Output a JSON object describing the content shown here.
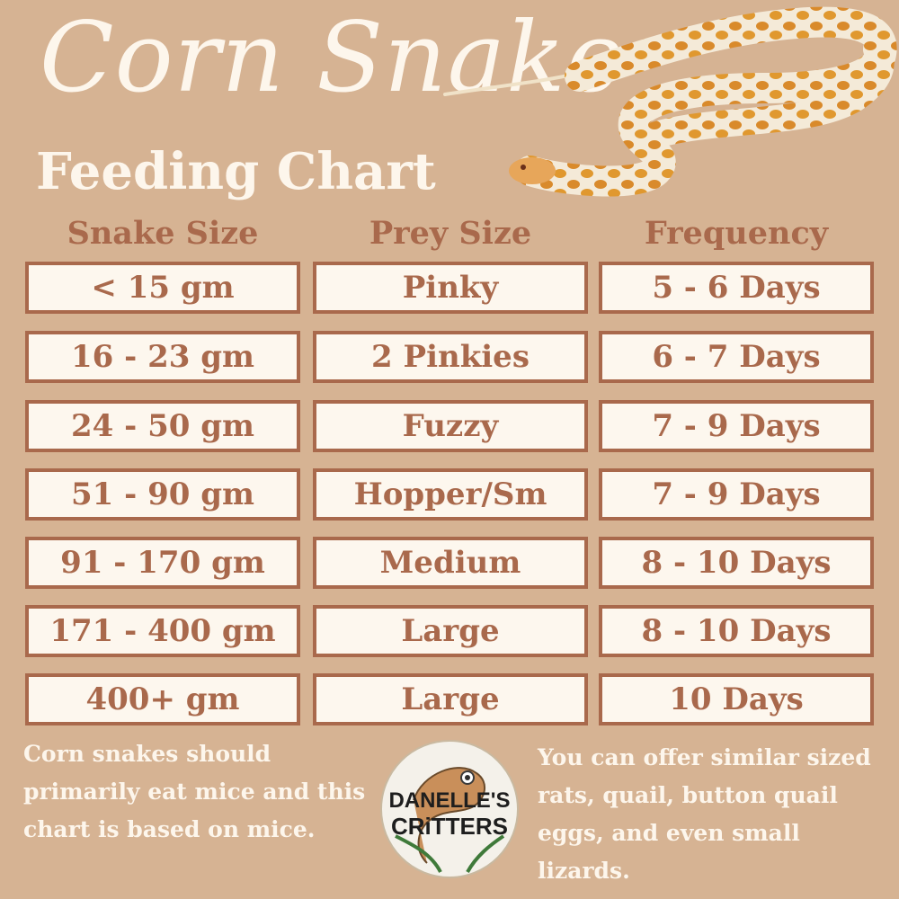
{
  "title": {
    "main": "Corn Snake",
    "sub": "Feeding Chart"
  },
  "columns": [
    "Snake Size",
    "Prey Size",
    "Frequency"
  ],
  "rows": [
    {
      "snake": "< 15 gm",
      "prey": "Pinky",
      "frequency": "5 - 6 Days"
    },
    {
      "snake": "16 - 23 gm",
      "prey": "2 Pinkies",
      "frequency": "6 - 7 Days"
    },
    {
      "snake": "24 - 50 gm",
      "prey": "Fuzzy",
      "frequency": "7 - 9 Days"
    },
    {
      "snake": "51 - 90 gm",
      "prey": "Hopper/Sm",
      "frequency": "7 - 9 Days"
    },
    {
      "snake": "91 - 170 gm",
      "prey": "Medium",
      "frequency": "8 - 10 Days"
    },
    {
      "snake": "171 - 400 gm",
      "prey": "Large",
      "frequency": "8 - 10 Days"
    },
    {
      "snake": "400+ gm",
      "prey": "Large",
      "frequency": "10 Days"
    }
  ],
  "notes": {
    "left": "Corn snakes should primarily eat mice and this chart is based on mice.",
    "right": "You can offer similar sized rats, quail, button quail eggs, and even small lizards."
  },
  "logo": {
    "line1": "DANELLE'S",
    "line2": "CRiTTERS"
  },
  "colors": {
    "background": "#d6b393",
    "accent": "#a9694c",
    "cell_fill": "#fdf7ee",
    "title": "#fdf6ec"
  },
  "icons": {
    "snake": "corn-snake-photo",
    "logo": "gecko-logo"
  }
}
